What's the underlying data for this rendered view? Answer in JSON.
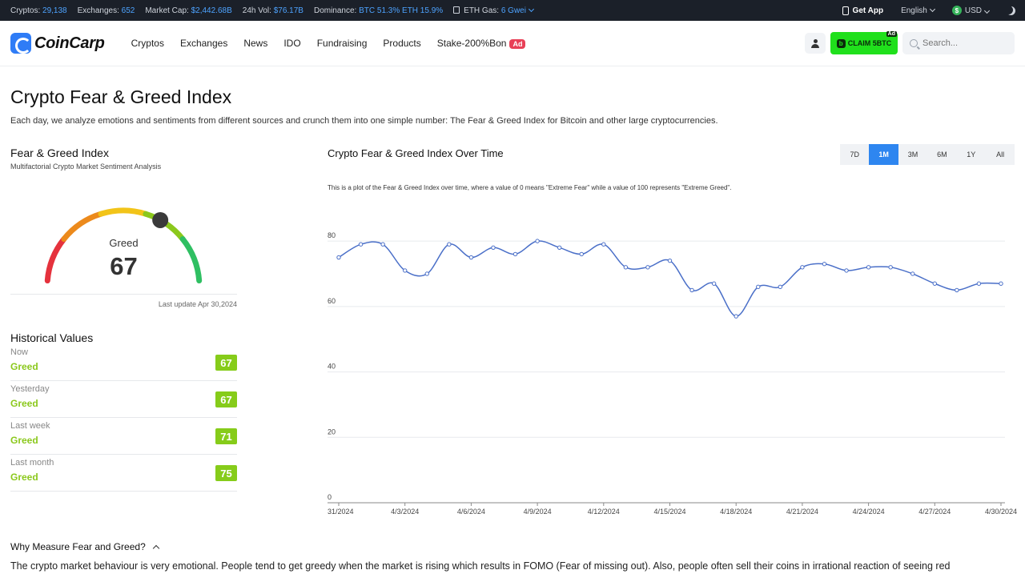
{
  "topbar": {
    "cryptos_label": "Cryptos:",
    "cryptos_value": "29,138",
    "exchanges_label": "Exchanges:",
    "exchanges_value": "652",
    "marketcap_label": "Market Cap:",
    "marketcap_value": "$2,442.68B",
    "vol_label": "24h Vol:",
    "vol_value": "$76.17B",
    "dominance_label": "Dominance:",
    "dominance_value": "BTC 51.3% ETH 15.9%",
    "gas_label": "ETH Gas:",
    "gas_value": "6 Gwei",
    "get_app": "Get App",
    "language": "English",
    "currency": "USD"
  },
  "nav": {
    "logo": "CoinCarp",
    "menu": [
      "Cryptos",
      "Exchanges",
      "News",
      "IDO",
      "Fundraising",
      "Products",
      "Stake-200%Bon"
    ],
    "ad_badge": "Ad",
    "claim": "CLAIM 5BTC",
    "claim_ad": "Ad",
    "search_placeholder": "Search..."
  },
  "page": {
    "title": "Crypto Fear & Greed Index",
    "description": "Each day, we analyze emotions and sentiments from different sources and crunch them into one simple number: The Fear & Greed Index for Bitcoin and other large cryptocurrencies."
  },
  "gauge": {
    "title": "Fear & Greed Index",
    "subtitle": "Multifactorial Crypto Market Sentiment Analysis",
    "label": "Greed",
    "value": 67,
    "last_update": "Last update Apr 30,2024"
  },
  "historical": {
    "title": "Historical Values",
    "rows": [
      {
        "when": "Now",
        "class": "Greed",
        "value": "67"
      },
      {
        "when": "Yesterday",
        "class": "Greed",
        "value": "67"
      },
      {
        "when": "Last week",
        "class": "Greed",
        "value": "71"
      },
      {
        "when": "Last month",
        "class": "Greed",
        "value": "75"
      }
    ]
  },
  "chart_panel": {
    "title": "Crypto Fear & Greed Index Over Time",
    "ranges": [
      "7D",
      "1M",
      "3M",
      "6M",
      "1Y",
      "All"
    ],
    "active_range": "1M",
    "note": "This is a plot of the Fear & Greed Index over time, where a value of 0 means \"Extreme Fear\" while a value of 100 represents \"Extreme Greed\"."
  },
  "chart_data": {
    "type": "line",
    "x": [
      "3/31/2024",
      "4/1/2024",
      "4/2/2024",
      "4/3/2024",
      "4/4/2024",
      "4/5/2024",
      "4/6/2024",
      "4/7/2024",
      "4/8/2024",
      "4/9/2024",
      "4/10/2024",
      "4/11/2024",
      "4/12/2024",
      "4/13/2024",
      "4/14/2024",
      "4/15/2024",
      "4/16/2024",
      "4/17/2024",
      "4/18/2024",
      "4/19/2024",
      "4/20/2024",
      "4/21/2024",
      "4/22/2024",
      "4/23/2024",
      "4/24/2024",
      "4/25/2024",
      "4/26/2024",
      "4/27/2024",
      "4/28/2024",
      "4/29/2024",
      "4/30/2024"
    ],
    "tick_labels": [
      "31/2024",
      "4/3/2024",
      "4/6/2024",
      "4/9/2024",
      "4/12/2024",
      "4/15/2024",
      "4/18/2024",
      "4/21/2024",
      "4/24/2024",
      "4/27/2024",
      "4/30/2024"
    ],
    "values": [
      75,
      79,
      79,
      71,
      70,
      79,
      75,
      78,
      76,
      80,
      78,
      76,
      79,
      72,
      72,
      74,
      65,
      67,
      57,
      66,
      66,
      72,
      73,
      71,
      72,
      72,
      70,
      67,
      65,
      67,
      67
    ],
    "ylim": [
      0,
      85
    ],
    "yticks": [
      0,
      20,
      40,
      60,
      80
    ],
    "grid": true,
    "color": "#4a6fc8"
  },
  "why": {
    "title": "Why Measure Fear and Greed?",
    "text": "The crypto market behaviour is very emotional. People tend to get greedy when the market is rising which results in FOMO (Fear of missing out). Also, people often sell their coins in irrational reaction of seeing red"
  }
}
